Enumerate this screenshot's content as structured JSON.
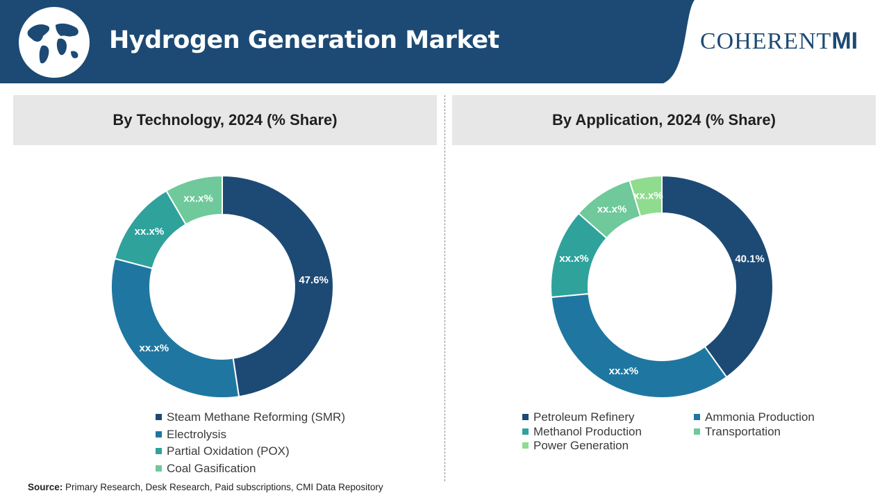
{
  "header": {
    "title": "Hydrogen Generation Market",
    "logo_main": "COHERENT",
    "logo_suffix": "MI",
    "colors": {
      "band": "#1d4a74",
      "logo": "#1d4a74"
    },
    "globe_icon": "world-map-globe"
  },
  "colors": {
    "dark_navy": "#1d4a74",
    "mid_blue": "#1f77a1",
    "teal": "#2fa29c",
    "light_green": "#6fc99a",
    "pale_green": "#8fdc8f"
  },
  "chart_data": [
    {
      "type": "donut",
      "title": "By Technology, 2024 (% Share)",
      "categories": [
        "Steam Methane Reforming (SMR)",
        "Electrolysis",
        "Partial Oxidation (POX)",
        "Coal Gasification"
      ],
      "values": [
        47.6,
        31.5,
        12.5,
        8.4
      ],
      "data_labels": [
        "47.6%",
        "xx.x%",
        "xx.x%",
        "xx.x%"
      ],
      "colors": [
        "#1d4a74",
        "#1f77a1",
        "#2fa29c",
        "#6fc99a"
      ],
      "legend_placement": "bottom"
    },
    {
      "type": "donut",
      "title": "By Application, 2024 (% Share)",
      "categories": [
        "Petroleum Refinery",
        "Ammonia Production",
        "Methanol Production",
        "Transportation",
        "Power Generation"
      ],
      "values": [
        40.1,
        33.4,
        13.0,
        8.8,
        4.7
      ],
      "data_labels": [
        "40.1%",
        "xx.x%",
        "xx.x%",
        "xx.x%",
        "xx.x%"
      ],
      "colors": [
        "#1d4a74",
        "#1f77a1",
        "#2fa29c",
        "#6fc99a",
        "#8fdc8f"
      ],
      "legend_placement": "bottom"
    }
  ],
  "source": {
    "label": "Source:",
    "text": " Primary Research, Desk Research, Paid subscriptions, CMI Data Repository"
  }
}
